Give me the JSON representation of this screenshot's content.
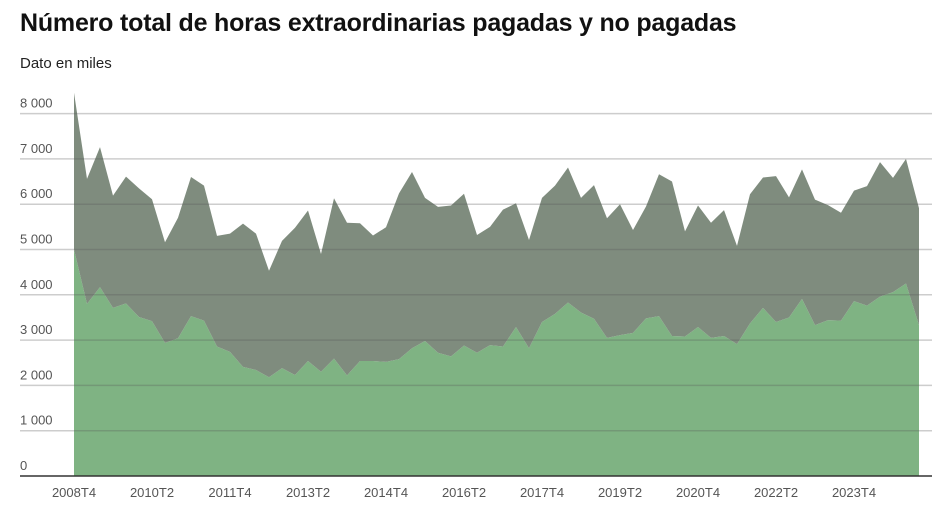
{
  "chart_data": {
    "type": "area",
    "stacked": true,
    "title": "Número total de horas extraordinarias pagadas y no pagadas",
    "subtitle": "Dato en miles",
    "xlabel": "",
    "ylabel": "",
    "ylim": [
      0,
      8000
    ],
    "yticks": [
      0,
      1000,
      2000,
      3000,
      4000,
      5000,
      6000,
      7000,
      8000
    ],
    "ytick_labels": [
      "0",
      "1 000",
      "2 000",
      "3 000",
      "4 000",
      "5 000",
      "6 000",
      "7 000",
      "8 000"
    ],
    "grid": true,
    "legend": "none",
    "categories": [
      "2008T4",
      "2009T1",
      "2009T2",
      "2009T3",
      "2009T4",
      "2010T1",
      "2010T2",
      "2010T3",
      "2010T4",
      "2011T1",
      "2011T2",
      "2011T3",
      "2011T4",
      "2012T1",
      "2012T2",
      "2012T3",
      "2012T4",
      "2013T1",
      "2013T2",
      "2013T3",
      "2013T4",
      "2014T1",
      "2014T2",
      "2014T3",
      "2014T4",
      "2015T1",
      "2015T2",
      "2015T3",
      "2015T4",
      "2016T1",
      "2016T2",
      "2016T3",
      "2016T4",
      "2017T1",
      "2017T2",
      "2017T3",
      "2017T4",
      "2018T1",
      "2018T2",
      "2018T3",
      "2018T4",
      "2019T1",
      "2019T2",
      "2019T3",
      "2019T4",
      "2020T1",
      "2020T2",
      "2020T3",
      "2020T4",
      "2021T1",
      "2021T2",
      "2021T3",
      "2021T4",
      "2022T1",
      "2022T2",
      "2022T3",
      "2022T4",
      "2023T1",
      "2023T2",
      "2023T3",
      "2023T4",
      "2024T1",
      "2024T2",
      "2024T3",
      "2024T4",
      "2025T1"
    ],
    "xtick_labels": [
      "2008T4",
      "2010T2",
      "2011T4",
      "2013T2",
      "2014T4",
      "2016T2",
      "2017T4",
      "2019T2",
      "2020T4",
      "2022T2",
      "2023T4"
    ],
    "series": [
      {
        "color": "#7fb383",
        "values": [
          5000,
          3800,
          4170,
          3710,
          3810,
          3510,
          3420,
          2940,
          3040,
          3530,
          3430,
          2860,
          2740,
          2410,
          2340,
          2180,
          2380,
          2230,
          2540,
          2300,
          2590,
          2220,
          2540,
          2540,
          2520,
          2580,
          2820,
          2980,
          2720,
          2640,
          2880,
          2720,
          2890,
          2860,
          3290,
          2820,
          3400,
          3580,
          3830,
          3610,
          3470,
          3050,
          3110,
          3160,
          3480,
          3530,
          3090,
          3080,
          3290,
          3050,
          3090,
          2910,
          3370,
          3710,
          3400,
          3500,
          3910,
          3330,
          3440,
          3430,
          3860,
          3760,
          3960,
          4060,
          4250,
          3330
        ]
      },
      {
        "color": "#7f8c7e",
        "values": [
          3460,
          2760,
          3090,
          2480,
          2800,
          2840,
          2690,
          2220,
          2660,
          3070,
          2980,
          2440,
          2610,
          3160,
          3010,
          2350,
          2810,
          3250,
          3320,
          2600,
          3540,
          3370,
          3040,
          2770,
          2970,
          3660,
          3890,
          3160,
          3220,
          3330,
          3350,
          2600,
          2610,
          3020,
          2730,
          2390,
          2740,
          2830,
          2980,
          2530,
          2950,
          2640,
          2890,
          2270,
          2470,
          3130,
          3410,
          2320,
          2680,
          2540,
          2780,
          2170,
          2850,
          2880,
          3220,
          2650,
          2860,
          2770,
          2540,
          2380,
          2440,
          2640,
          2970,
          2520,
          2750,
          2580
        ]
      }
    ]
  }
}
